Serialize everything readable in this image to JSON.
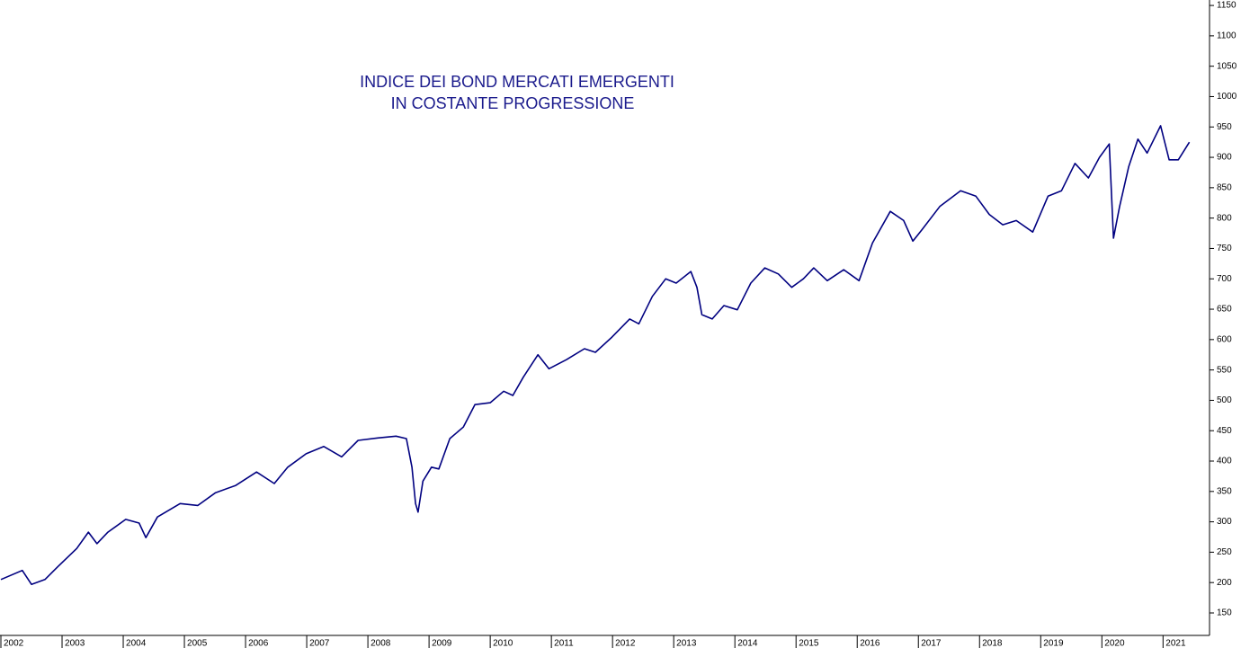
{
  "chart_data": {
    "type": "line",
    "title": [
      "INDICE DEI BOND MERCATI EMERGENTI",
      "IN COSTANTE PROGRESSIONE"
    ],
    "x": [
      2002.0,
      2002.35,
      2002.5,
      2002.72,
      2002.94,
      2003.24,
      2003.43,
      2003.57,
      2003.75,
      2004.04,
      2004.26,
      2004.37,
      2004.56,
      2004.93,
      2005.22,
      2005.51,
      2005.84,
      2006.18,
      2006.47,
      2006.69,
      2006.99,
      2007.28,
      2007.57,
      2007.84,
      2008.16,
      2008.46,
      2008.63,
      2008.72,
      2008.78,
      2008.82,
      2008.9,
      2009.04,
      2009.16,
      2009.34,
      2009.56,
      2009.75,
      2010.0,
      2010.22,
      2010.37,
      2010.54,
      2010.78,
      2010.96,
      2011.25,
      2011.54,
      2011.72,
      2011.99,
      2012.28,
      2012.43,
      2012.65,
      2012.87,
      2013.04,
      2013.28,
      2013.38,
      2013.46,
      2013.63,
      2013.82,
      2014.04,
      2014.26,
      2014.49,
      2014.71,
      2014.93,
      2015.12,
      2015.29,
      2015.51,
      2015.78,
      2016.03,
      2016.25,
      2016.54,
      2016.76,
      2016.91,
      2017.06,
      2017.35,
      2017.69,
      2017.94,
      2018.16,
      2018.38,
      2018.6,
      2018.87,
      2019.12,
      2019.34,
      2019.56,
      2019.78,
      2019.96,
      2020.12,
      2020.19,
      2020.29,
      2020.44,
      2020.59,
      2020.74,
      2020.96,
      2021.1,
      2021.25,
      2021.43
    ],
    "series": [
      {
        "color": "#000080",
        "values": [
          205,
          220,
          197,
          205,
          227,
          256,
          283,
          264,
          283,
          304,
          298,
          274,
          308,
          330,
          327,
          348,
          360,
          382,
          363,
          390,
          412,
          424,
          407,
          434,
          438,
          441,
          437,
          390,
          330,
          316,
          367,
          390,
          387,
          437,
          456,
          493,
          496,
          515,
          508,
          538,
          575,
          552,
          567,
          585,
          579,
          604,
          634,
          626,
          671,
          700,
          693,
          712,
          686,
          641,
          634,
          656,
          649,
          693,
          718,
          708,
          686,
          700,
          718,
          697,
          715,
          697,
          759,
          811,
          796,
          762,
          781,
          819,
          845,
          836,
          806,
          789,
          796,
          777,
          836,
          845,
          890,
          866,
          900,
          922,
          767,
          819,
          885,
          930,
          907,
          952,
          896,
          896,
          925
        ]
      }
    ],
    "xlim": [
      2002,
      2021.76
    ],
    "xticks": [
      2002,
      2003,
      2004,
      2005,
      2006,
      2007,
      2008,
      2009,
      2010,
      2011,
      2012,
      2013,
      2014,
      2015,
      2016,
      2017,
      2018,
      2019,
      2020,
      2021
    ],
    "ylim": [
      113,
      1159
    ],
    "yticks": [
      150,
      200,
      250,
      300,
      350,
      400,
      450,
      500,
      550,
      600,
      650,
      700,
      750,
      800,
      850,
      900,
      950,
      1000,
      1050,
      1100,
      1150
    ]
  }
}
